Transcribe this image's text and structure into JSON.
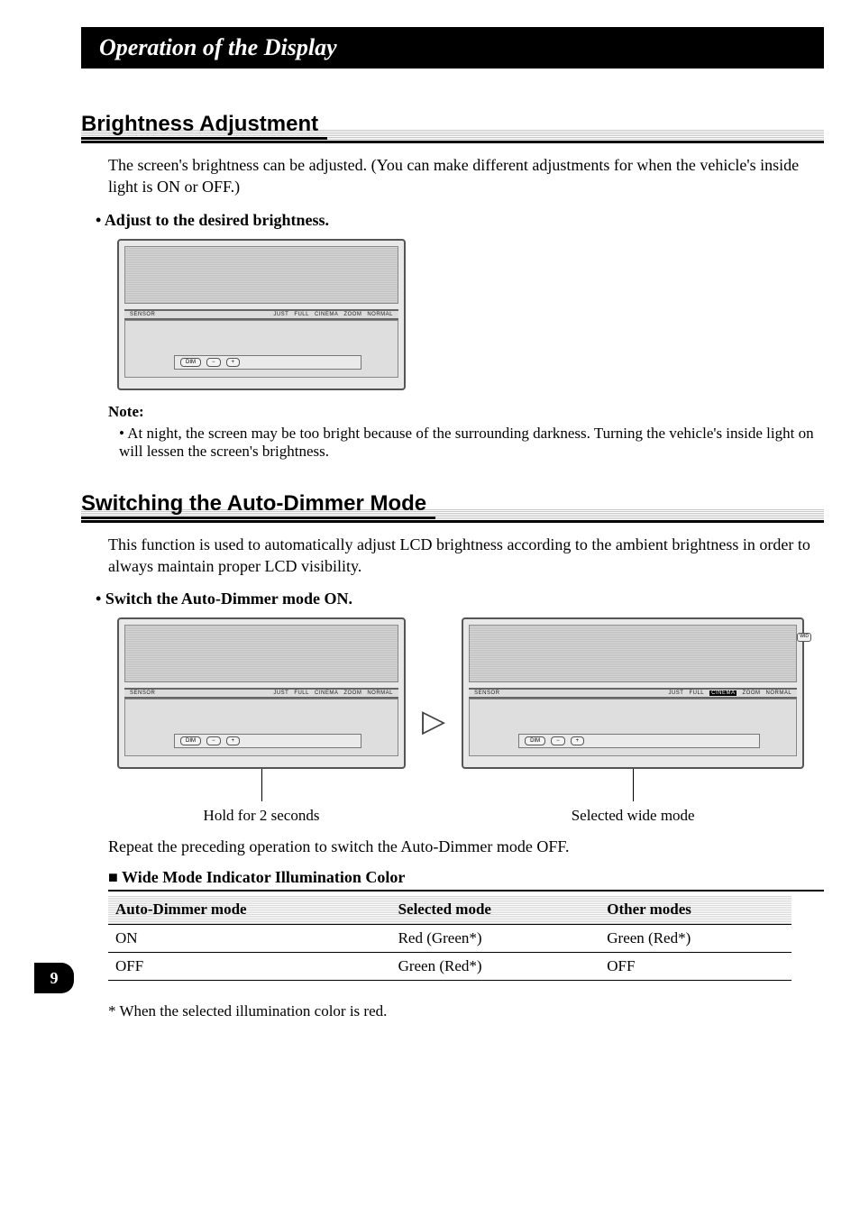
{
  "page_title": "Operation of the Display",
  "page_number": "9",
  "section1": {
    "heading": "Brightness Adjustment",
    "intro": "The screen's brightness can be adjusted. (You can make different adjustments for when the vehicle's inside light is ON or OFF.)",
    "bullet_heading": "Adjust to the desired brightness.",
    "note_label": "Note:",
    "note_text": "At night, the screen may be too bright because of the surrounding darkness. Turning the vehicle's inside light on will lessen the screen's brightness."
  },
  "section2": {
    "heading": "Switching the Auto-Dimmer Mode",
    "intro": "This function is used to automatically adjust LCD brightness according to the ambient brightness in order to always maintain proper LCD visibility.",
    "bullet_heading": "Switch the Auto-Dimmer mode ON.",
    "fig1_caption": "Hold for 2 seconds",
    "fig2_caption": "Selected wide mode",
    "repeat_text": "Repeat the preceding operation to switch the Auto-Dimmer mode OFF."
  },
  "panel": {
    "sensor_label": "SENSOR",
    "modes": [
      "JUST",
      "FULL",
      "CINEMA",
      "ZOOM",
      "NORMAL"
    ],
    "selected_mode_index_fig2": 2,
    "dim_btn": "DIM",
    "minus_btn": "−",
    "plus_btn": "+",
    "wide_btn": "WID"
  },
  "table": {
    "title": "Wide Mode Indicator Illumination Color",
    "columns": [
      "Auto-Dimmer mode",
      "Selected mode",
      "Other modes"
    ],
    "rows": [
      [
        "ON",
        "Red (Green*)",
        "Green (Red*)"
      ],
      [
        "OFF",
        "Green (Red*)",
        "OFF"
      ]
    ]
  },
  "footnote": "*  When the selected illumination color is red.",
  "colors": {
    "title_bg": "#000000",
    "title_fg": "#ffffff",
    "hatch": "#c8c8c8",
    "panel_bg": "#e8e8e8"
  }
}
